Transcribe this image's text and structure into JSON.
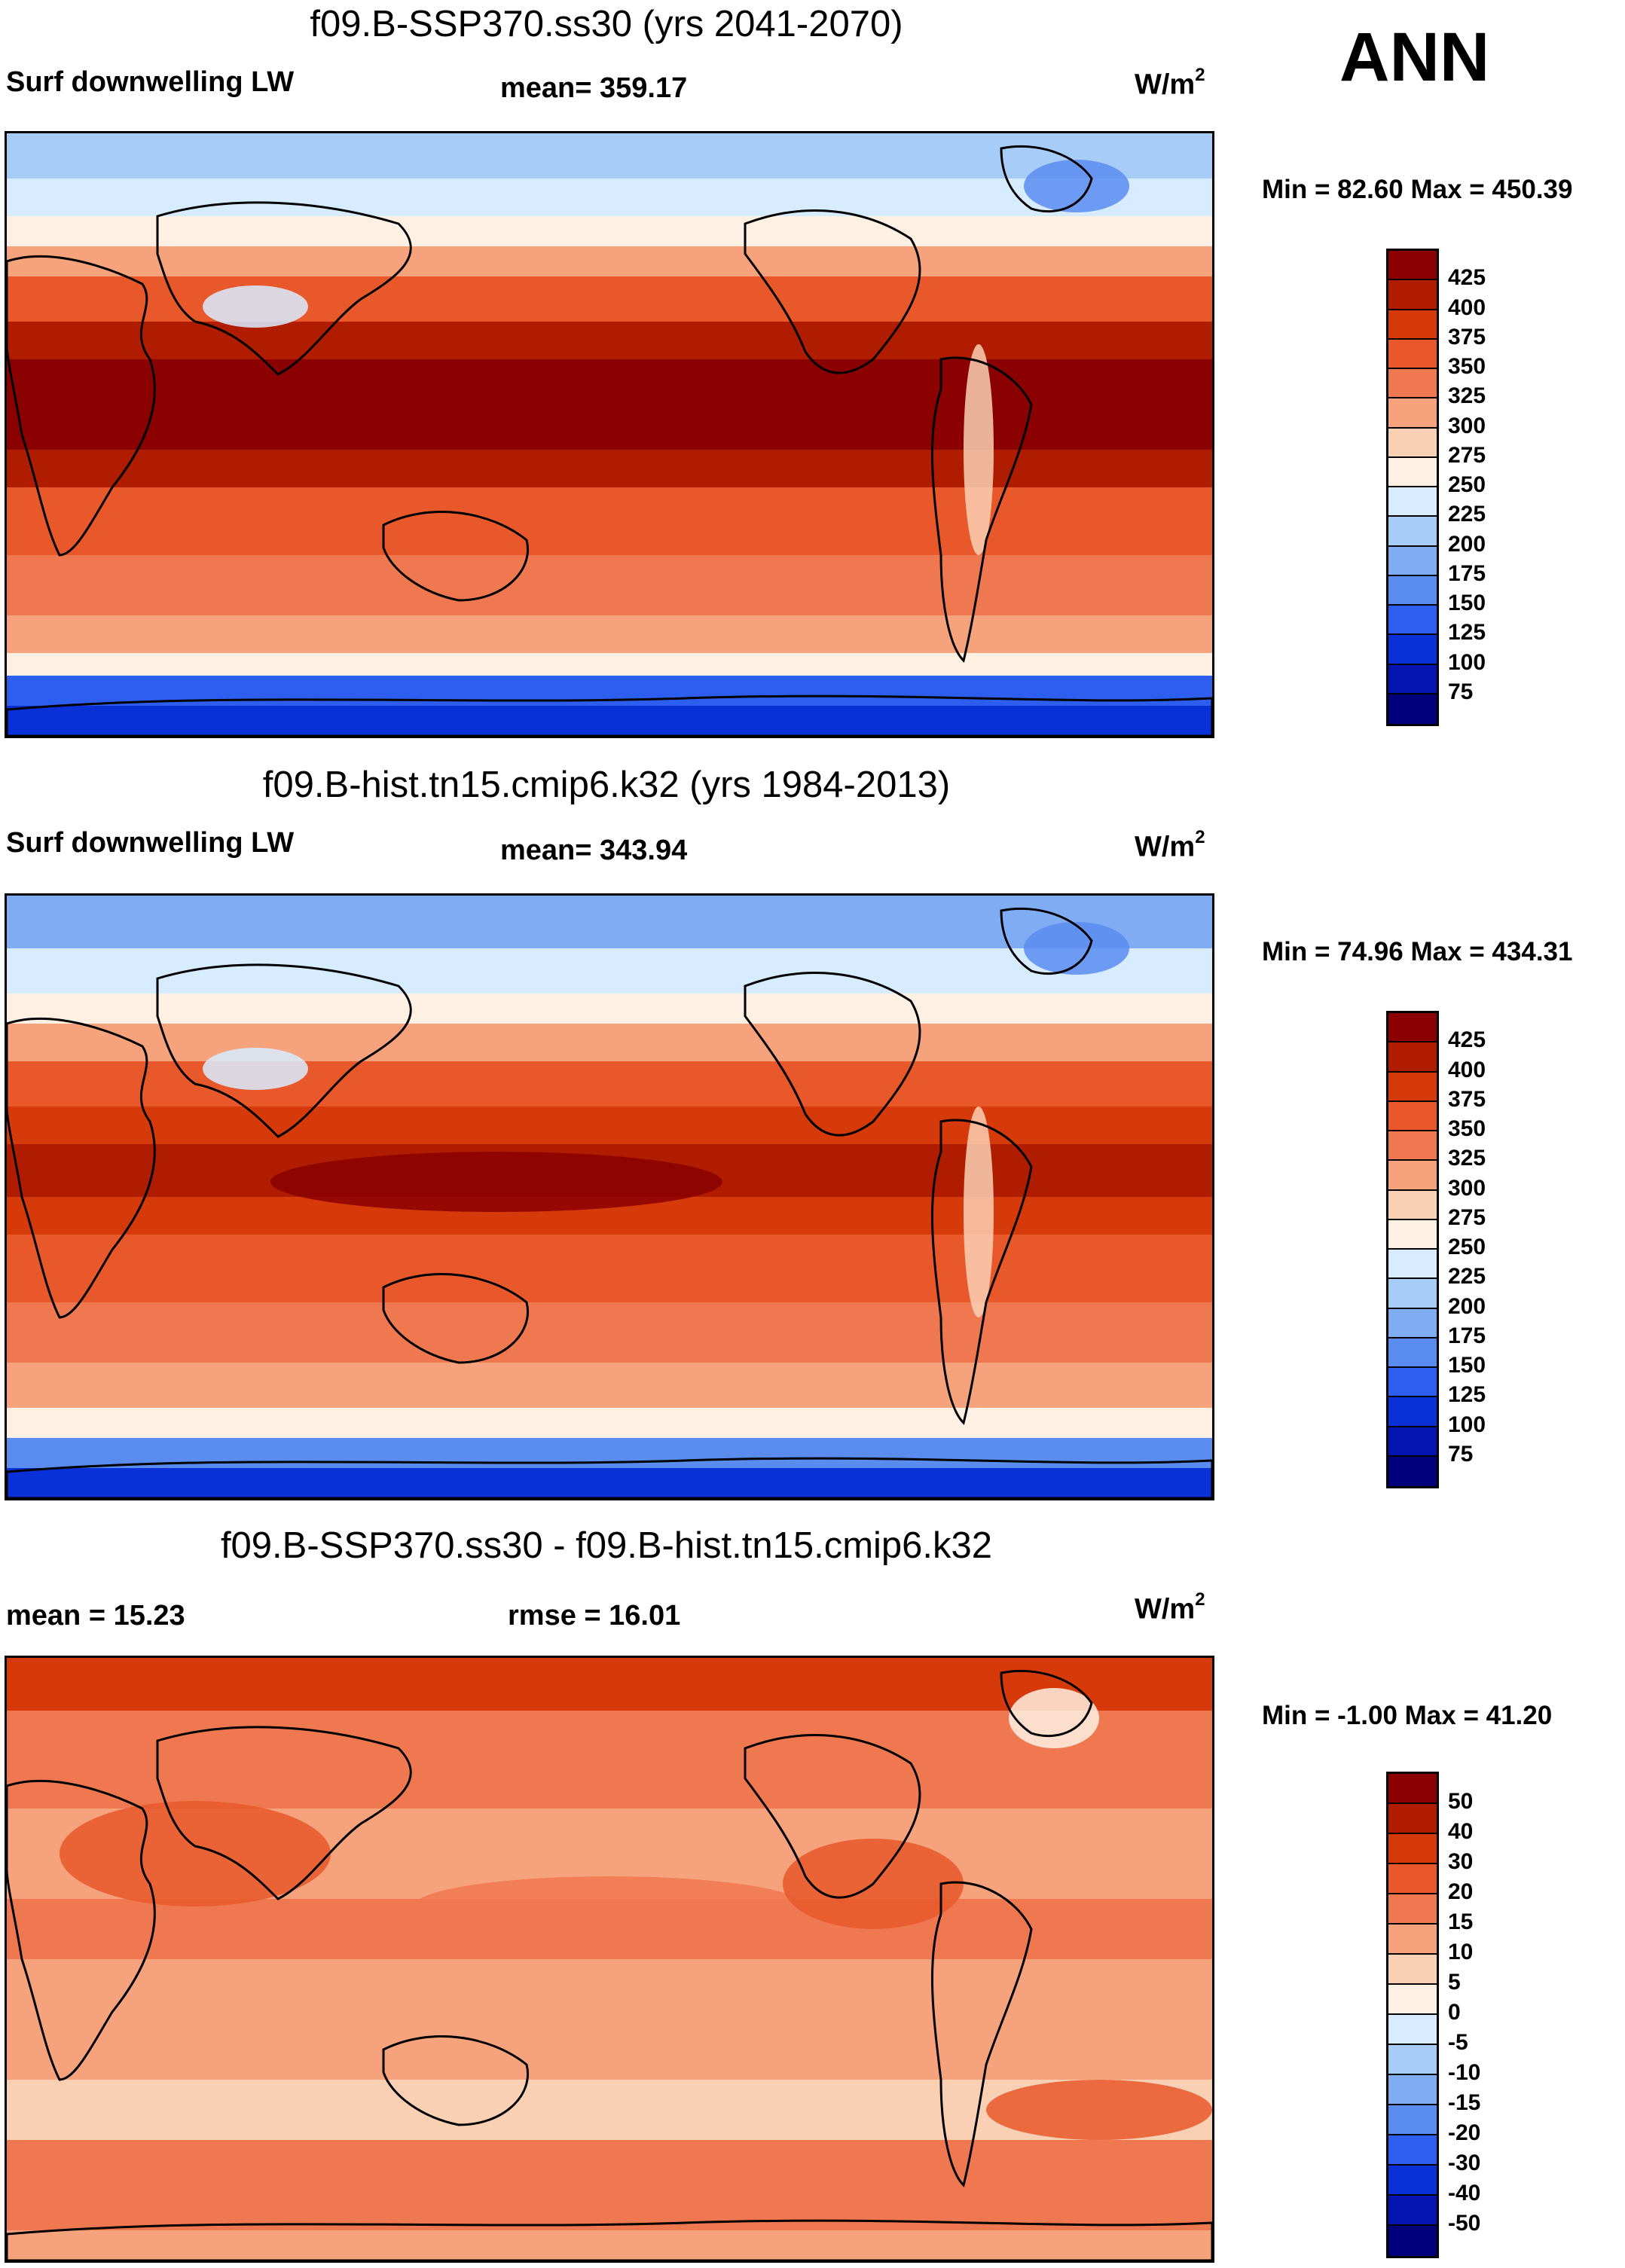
{
  "season": "ANN",
  "panels": [
    {
      "title": "f09.B-SSP370.ss30 (yrs 2041-2070)",
      "left_label": "Surf downwelling LW",
      "center_label": "mean= 359.17",
      "unit": "W/m",
      "unit_sup": "2",
      "min_max": "Min =  82.60 Max = 450.39",
      "colorbar": {
        "labels": [
          "425",
          "400",
          "375",
          "350",
          "325",
          "300",
          "275",
          "250",
          "225",
          "200",
          "175",
          "150",
          "125",
          "100",
          "75"
        ],
        "colors": [
          "#8b0000",
          "#b01c00",
          "#d63a0a",
          "#e8582a",
          "#f07850",
          "#f6a27c",
          "#fad0b4",
          "#fef0e2",
          "#d8ecff",
          "#a8ccf8",
          "#80acf4",
          "#5a8cf0",
          "#2e5ef0",
          "#0a30d8",
          "#0414b0",
          "#00007a"
        ]
      },
      "field": "abs"
    },
    {
      "title": "f09.B-hist.tn15.cmip6.k32 (yrs 1984-2013)",
      "left_label": "Surf downwelling LW",
      "center_label": "mean= 343.94",
      "unit": "W/m",
      "unit_sup": "2",
      "min_max": "Min =  74.96 Max = 434.31",
      "colorbar": {
        "labels": [
          "425",
          "400",
          "375",
          "350",
          "325",
          "300",
          "275",
          "250",
          "225",
          "200",
          "175",
          "150",
          "125",
          "100",
          "75"
        ],
        "colors": [
          "#8b0000",
          "#b01c00",
          "#d63a0a",
          "#e8582a",
          "#f07850",
          "#f6a27c",
          "#fad0b4",
          "#fef0e2",
          "#d8ecff",
          "#a8ccf8",
          "#80acf4",
          "#5a8cf0",
          "#2e5ef0",
          "#0a30d8",
          "#0414b0",
          "#00007a"
        ]
      },
      "field": "abs_hist"
    },
    {
      "title": "f09.B-SSP370.ss30 - f09.B-hist.tn15.cmip6.k32",
      "left_label": "mean =  15.23",
      "center_label": "rmse =  16.01",
      "unit": "W/m",
      "unit_sup": "2",
      "min_max": "Min =  -1.00 Max =  41.20",
      "colorbar": {
        "labels": [
          "50",
          "40",
          "30",
          "20",
          "15",
          "10",
          "5",
          "0",
          "-5",
          "-10",
          "-15",
          "-20",
          "-30",
          "-40",
          "-50"
        ],
        "colors": [
          "#8b0000",
          "#b01c00",
          "#d63a0a",
          "#e8582a",
          "#f07850",
          "#f6a27c",
          "#fad0b4",
          "#fef0e2",
          "#d8ecff",
          "#a8ccf8",
          "#80acf4",
          "#5a8cf0",
          "#2e5ef0",
          "#0a30d8",
          "#0414b0",
          "#00007a"
        ]
      },
      "field": "diff"
    }
  ]
}
